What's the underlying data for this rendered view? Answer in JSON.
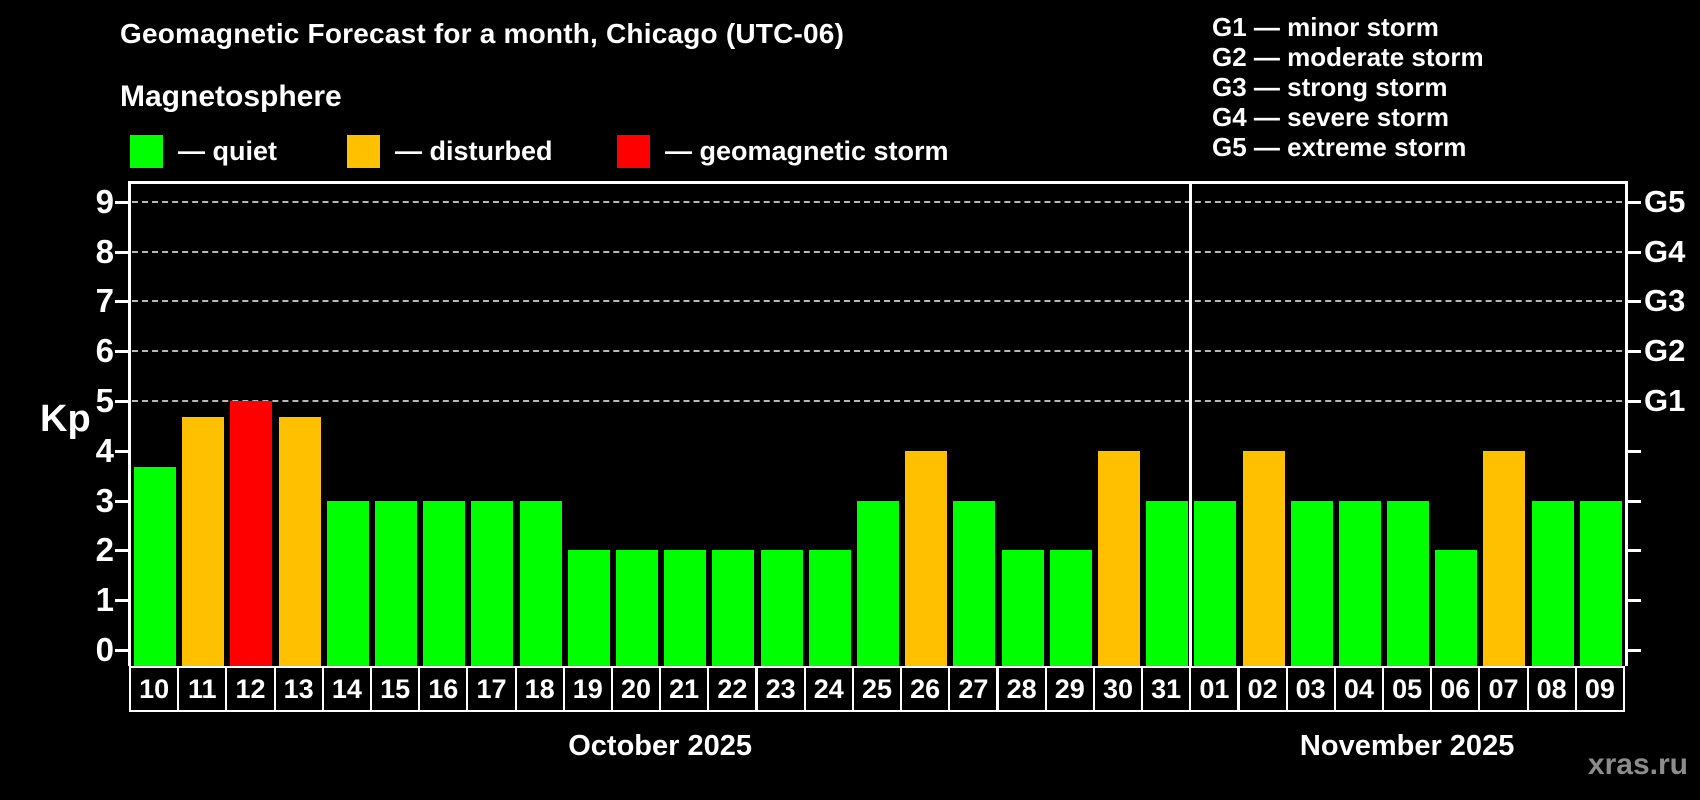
{
  "title": "Geomagnetic Forecast for a month, Chicago (UTC-06)",
  "subtitle": "Magnetosphere",
  "legend": {
    "items": [
      {
        "status": "quiet",
        "label": "— quiet",
        "color": "#00FF00",
        "x": 130
      },
      {
        "status": "disturbed",
        "label": "— disturbed",
        "color": "#FFC000",
        "x": 347
      },
      {
        "status": "storm",
        "label": "— geomagnetic storm",
        "color": "#FF0000",
        "x": 617
      }
    ]
  },
  "storm_scale_legend": [
    "G1 — minor storm",
    "G2 — moderate storm",
    "G3 — strong storm",
    "G4 — severe storm",
    "G5 — extreme storm"
  ],
  "watermark": "xras.ru",
  "chart_data": {
    "type": "bar",
    "title": "Geomagnetic Forecast for a month, Chicago (UTC-06)",
    "xlabel": "",
    "ylabel": "Kp",
    "ylim": [
      0,
      9
    ],
    "yticks": [
      0,
      1,
      2,
      3,
      4,
      5,
      6,
      7,
      8,
      9
    ],
    "gridline_levels": [
      5,
      6,
      7,
      8,
      9
    ],
    "grid": "dashed, on storm levels only",
    "legend_position": "top-left",
    "right_axis_labels": [
      {
        "label": "G1",
        "kp": 5
      },
      {
        "label": "G2",
        "kp": 6
      },
      {
        "label": "G3",
        "kp": 7
      },
      {
        "label": "G4",
        "kp": 8
      },
      {
        "label": "G5",
        "kp": 9
      }
    ],
    "categories": [
      "10",
      "11",
      "12",
      "13",
      "14",
      "15",
      "16",
      "17",
      "18",
      "19",
      "20",
      "21",
      "22",
      "23",
      "24",
      "25",
      "26",
      "27",
      "28",
      "29",
      "30",
      "31",
      "01",
      "02",
      "03",
      "04",
      "05",
      "06",
      "07",
      "08",
      "09"
    ],
    "values": [
      3.67,
      4.67,
      5,
      4.67,
      3,
      3,
      3,
      3,
      3,
      2,
      2,
      2,
      2,
      2,
      2,
      3,
      4,
      3,
      2,
      2,
      4,
      3,
      3,
      4,
      3,
      3,
      3,
      2,
      4,
      3,
      3
    ],
    "statuses": [
      "quiet",
      "disturbed",
      "storm",
      "disturbed",
      "quiet",
      "quiet",
      "quiet",
      "quiet",
      "quiet",
      "quiet",
      "quiet",
      "quiet",
      "quiet",
      "quiet",
      "quiet",
      "quiet",
      "disturbed",
      "quiet",
      "quiet",
      "quiet",
      "disturbed",
      "quiet",
      "quiet",
      "disturbed",
      "quiet",
      "quiet",
      "quiet",
      "quiet",
      "disturbed",
      "quiet",
      "quiet"
    ],
    "status_colors": {
      "quiet": "#00FF00",
      "disturbed": "#FFC000",
      "storm": "#FF0000"
    },
    "months": [
      {
        "label": "October 2025",
        "days": 22
      },
      {
        "label": "November 2025",
        "days": 9
      }
    ]
  }
}
